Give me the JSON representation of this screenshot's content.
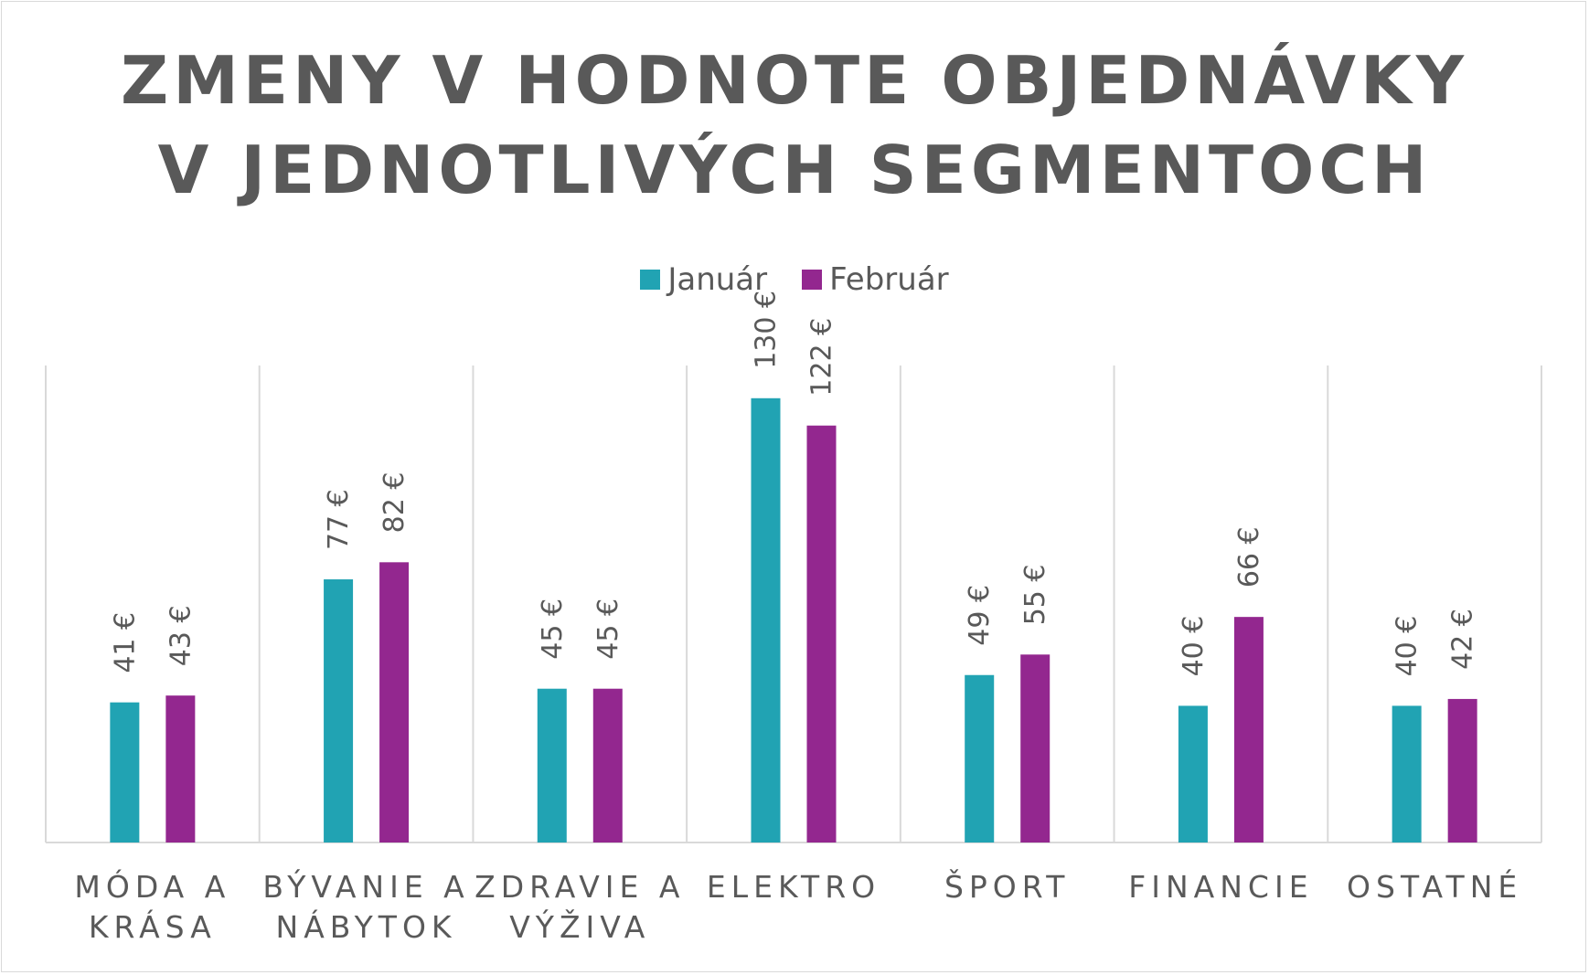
{
  "chart_data": {
    "type": "bar",
    "title": [
      "ZMENY V HODNOTE OBJEDNÁVKY",
      "V JEDNOTLIVÝCH SEGMENTOCH"
    ],
    "categories": [
      [
        "MÓDA A",
        "KRÁSA"
      ],
      [
        "BÝVANIE A",
        "NÁBYTOK"
      ],
      [
        "ZDRAVIE A",
        "VÝŽIVA"
      ],
      [
        "ELEKTRO"
      ],
      [
        "ŠPORT"
      ],
      [
        "FINANCIE"
      ],
      [
        "OSTATNÉ"
      ]
    ],
    "series": [
      {
        "name": "Január",
        "color": "#21a3b3",
        "values": [
          41,
          77,
          45,
          130,
          49,
          40,
          40
        ],
        "labels": [
          "41 €",
          "77 €",
          "45 €",
          "130 €",
          "49 €",
          "40 €",
          "40 €"
        ]
      },
      {
        "name": "Február",
        "color": "#93278f",
        "values": [
          43,
          82,
          45,
          122,
          55,
          66,
          42
        ],
        "labels": [
          "43 €",
          "82 €",
          "45 €",
          "122 €",
          "55 €",
          "66 €",
          "42 €"
        ]
      }
    ],
    "xlabel": "",
    "ylabel": "",
    "ylim": [
      0,
      140
    ],
    "legend_position": "top",
    "grid": "vertical category separators"
  }
}
